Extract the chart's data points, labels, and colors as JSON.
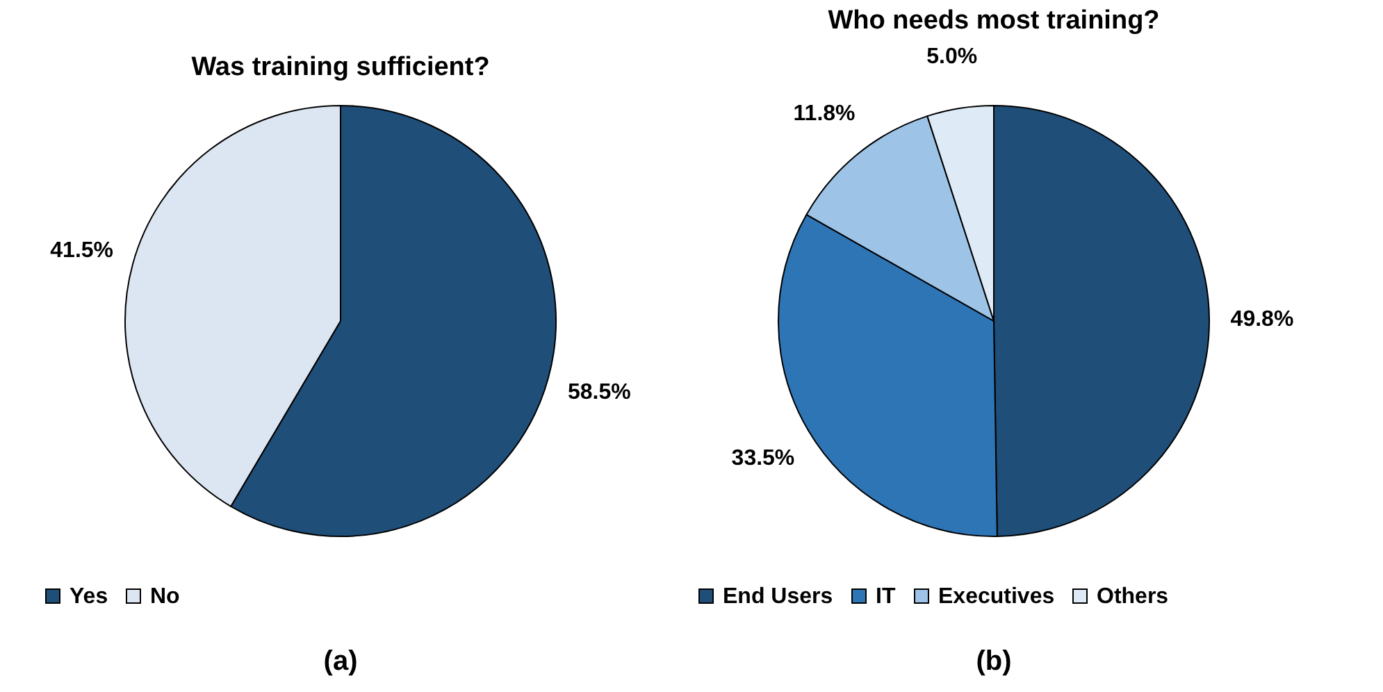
{
  "chart_data": [
    {
      "type": "pie",
      "title": "Was training sufficient?",
      "categories": [
        "Yes",
        "No"
      ],
      "values": [
        58.5,
        41.5
      ],
      "colors": [
        "#1f4e79",
        "#dce6f2"
      ],
      "value_labels": [
        "58.5%",
        "41.5%"
      ],
      "legend": "bottom",
      "annotations": [
        "(a)"
      ]
    },
    {
      "type": "pie",
      "title": "Who needs most training?",
      "categories": [
        "End Users",
        "IT",
        "Executives",
        "Others"
      ],
      "values": [
        49.8,
        33.5,
        11.8,
        5.0
      ],
      "colors": [
        "#1f4e79",
        "#2e75b6",
        "#9dc3e6",
        "#deebf7"
      ],
      "value_labels": [
        "49.8%",
        "33.5%",
        "11.8%",
        "5.0%"
      ],
      "legend": "bottom",
      "annotations": [
        "(b)"
      ]
    }
  ]
}
